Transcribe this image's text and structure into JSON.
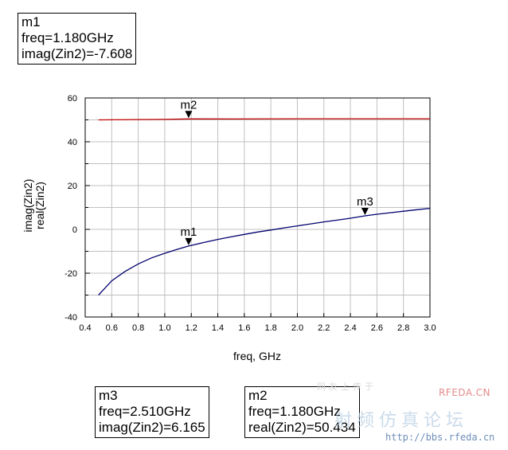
{
  "colors": {
    "imag_series": "#00006e",
    "real_series": "#c00000",
    "grid": "#c0c0c0",
    "axis": "#000000",
    "marker": "#000000"
  },
  "marker_boxes": {
    "m1": {
      "name": "m1",
      "line1": "freq=1.180GHz",
      "line2": "imag(Zin2)=-7.608"
    },
    "m3": {
      "name": "m3",
      "line1": "freq=2.510GHz",
      "line2": "imag(Zin2)=6.165"
    },
    "m2": {
      "name": "m2",
      "line1": "freq=1.180GHz",
      "line2": "real(Zin2)=50.434"
    }
  },
  "watermark": {
    "logo": "RFEDA.CN",
    "cn": "射频仿真论坛",
    "url": "http://bbs.rfeda.cn",
    "faint": "网友上传于"
  },
  "chart_data": {
    "type": "line",
    "xlabel": "freq, GHz",
    "ylabel_series": [
      "imag(Zin2)",
      "real(Zin2)"
    ],
    "xlim": [
      0.4,
      3.0
    ],
    "ylim": [
      -40,
      60
    ],
    "x_ticks": [
      "0.4",
      "0.6",
      "0.8",
      "1.0",
      "1.2",
      "1.4",
      "1.6",
      "1.8",
      "2.0",
      "2.2",
      "2.4",
      "2.6",
      "2.8",
      "3.0"
    ],
    "y_ticks": [
      "-40",
      "-20",
      "0",
      "20",
      "40",
      "60"
    ],
    "grid": true,
    "series": [
      {
        "name": "imag(Zin2)",
        "x": [
          0.5,
          0.6,
          0.7,
          0.8,
          0.9,
          1.0,
          1.1,
          1.18,
          1.3,
          1.4,
          1.5,
          1.6,
          1.7,
          1.8,
          1.9,
          2.0,
          2.1,
          2.2,
          2.3,
          2.4,
          2.51,
          2.6,
          2.7,
          2.8,
          2.9,
          3.0
        ],
        "y": [
          -30.0,
          -23.5,
          -19.2,
          -15.8,
          -13.0,
          -10.9,
          -9.0,
          -7.608,
          -5.9,
          -4.6,
          -3.4,
          -2.3,
          -1.2,
          -0.3,
          0.7,
          1.6,
          2.5,
          3.4,
          4.2,
          5.1,
          6.165,
          6.9,
          7.6,
          8.3,
          9.0,
          9.6
        ]
      },
      {
        "name": "real(Zin2)",
        "x": [
          0.5,
          1.0,
          1.18,
          1.5,
          2.0,
          2.5,
          3.0
        ],
        "y": [
          50.0,
          50.2,
          50.434,
          50.4,
          50.5,
          50.5,
          50.5
        ]
      }
    ],
    "markers": [
      {
        "label": "m1",
        "series": "imag(Zin2)",
        "x": 1.18,
        "y": -7.608
      },
      {
        "label": "m2",
        "series": "real(Zin2)",
        "x": 1.18,
        "y": 50.434
      },
      {
        "label": "m3",
        "series": "imag(Zin2)",
        "x": 2.51,
        "y": 6.165
      }
    ]
  }
}
